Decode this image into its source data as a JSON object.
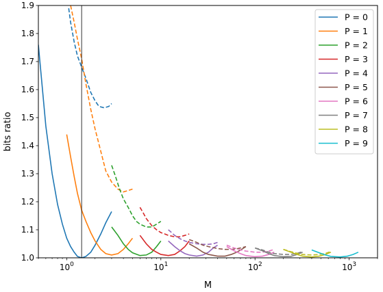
{
  "chart_data": {
    "type": "line",
    "title": "",
    "xlabel": "M",
    "ylabel": "bits ratio",
    "xscale": "log",
    "xlim": [
      0.5,
      2000
    ],
    "ylim": [
      1.0,
      1.9
    ],
    "xticks": [
      {
        "value": 1,
        "base": "10",
        "exp": "0"
      },
      {
        "value": 10,
        "base": "10",
        "exp": "1"
      },
      {
        "value": 100,
        "base": "10",
        "exp": "2"
      },
      {
        "value": 1000,
        "base": "10",
        "exp": "3"
      }
    ],
    "yticks": [
      {
        "value": 1.0,
        "label": "1.0"
      },
      {
        "value": 1.1,
        "label": "1.1"
      },
      {
        "value": 1.2,
        "label": "1.2"
      },
      {
        "value": 1.3,
        "label": "1.3"
      },
      {
        "value": 1.4,
        "label": "1.4"
      },
      {
        "value": 1.5,
        "label": "1.5"
      },
      {
        "value": 1.6,
        "label": "1.6"
      },
      {
        "value": 1.7,
        "label": "1.7"
      },
      {
        "value": 1.8,
        "label": "1.8"
      },
      {
        "value": 1.9,
        "label": "1.9"
      }
    ],
    "vline_x": 1.44,
    "grid": false,
    "legend_position": "top-right",
    "series": [
      {
        "name": "P = 0",
        "color": "#1f77b4",
        "solid": [
          [
            0.5,
            1.76
          ],
          [
            0.6,
            1.47
          ],
          [
            0.7,
            1.3
          ],
          [
            0.8,
            1.19
          ],
          [
            0.9,
            1.12
          ],
          [
            1.0,
            1.07
          ],
          [
            1.1,
            1.04
          ],
          [
            1.2,
            1.02
          ],
          [
            1.3,
            1.005
          ],
          [
            1.44,
            1.0
          ],
          [
            1.6,
            1.005
          ],
          [
            1.8,
            1.02
          ],
          [
            2.0,
            1.045
          ],
          [
            2.3,
            1.085
          ],
          [
            2.6,
            1.125
          ],
          [
            3.0,
            1.165
          ]
        ],
        "dashed": [
          [
            1.05,
            1.89
          ],
          [
            1.1,
            1.84
          ],
          [
            1.2,
            1.77
          ],
          [
            1.3,
            1.72
          ],
          [
            1.44,
            1.68
          ],
          [
            1.6,
            1.64
          ],
          [
            1.8,
            1.59
          ],
          [
            2.0,
            1.56
          ],
          [
            2.2,
            1.54
          ],
          [
            2.5,
            1.535
          ],
          [
            2.8,
            1.54
          ],
          [
            3.0,
            1.55
          ]
        ]
      },
      {
        "name": "P = 1",
        "color": "#ff7f0e",
        "solid": [
          [
            1.0,
            1.44
          ],
          [
            1.1,
            1.36
          ],
          [
            1.2,
            1.29
          ],
          [
            1.3,
            1.23
          ],
          [
            1.44,
            1.17
          ],
          [
            1.6,
            1.13
          ],
          [
            1.8,
            1.09
          ],
          [
            2.0,
            1.06
          ],
          [
            2.3,
            1.03
          ],
          [
            2.6,
            1.015
          ],
          [
            3.0,
            1.01
          ],
          [
            3.5,
            1.015
          ],
          [
            4.0,
            1.03
          ],
          [
            4.5,
            1.05
          ],
          [
            5.0,
            1.07
          ]
        ],
        "dashed": [
          [
            1.1,
            1.9
          ],
          [
            1.2,
            1.84
          ],
          [
            1.3,
            1.78
          ],
          [
            1.44,
            1.71
          ],
          [
            1.6,
            1.62
          ],
          [
            1.8,
            1.53
          ],
          [
            2.0,
            1.46
          ],
          [
            2.3,
            1.38
          ],
          [
            2.6,
            1.31
          ],
          [
            3.0,
            1.27
          ],
          [
            3.5,
            1.245
          ],
          [
            4.0,
            1.235
          ],
          [
            4.5,
            1.24
          ],
          [
            5.0,
            1.245
          ]
        ]
      },
      {
        "name": "P = 2",
        "color": "#2ca02c",
        "solid": [
          [
            3.0,
            1.11
          ],
          [
            3.5,
            1.08
          ],
          [
            4.0,
            1.05
          ],
          [
            4.5,
            1.03
          ],
          [
            5.0,
            1.018
          ],
          [
            6.0,
            1.008
          ],
          [
            7.0,
            1.01
          ],
          [
            8.0,
            1.02
          ],
          [
            9.0,
            1.04
          ],
          [
            10.0,
            1.06
          ]
        ],
        "dashed": [
          [
            3.0,
            1.33
          ],
          [
            3.3,
            1.29
          ],
          [
            3.6,
            1.25
          ],
          [
            4.0,
            1.21
          ],
          [
            4.5,
            1.18
          ],
          [
            5.0,
            1.15
          ],
          [
            5.5,
            1.13
          ],
          [
            6.0,
            1.12
          ],
          [
            7.0,
            1.11
          ],
          [
            8.0,
            1.11
          ],
          [
            9.0,
            1.12
          ],
          [
            10.0,
            1.13
          ]
        ]
      },
      {
        "name": "P = 3",
        "color": "#d62728",
        "solid": [
          [
            6.0,
            1.08
          ],
          [
            7.0,
            1.05
          ],
          [
            8.0,
            1.03
          ],
          [
            9.0,
            1.02
          ],
          [
            10.0,
            1.012
          ],
          [
            12.0,
            1.008
          ],
          [
            14.0,
            1.012
          ],
          [
            16.0,
            1.025
          ],
          [
            18.0,
            1.04
          ],
          [
            20.0,
            1.06
          ]
        ],
        "dashed": [
          [
            6.0,
            1.18
          ],
          [
            6.5,
            1.16
          ],
          [
            7.0,
            1.14
          ],
          [
            8.0,
            1.115
          ],
          [
            9.0,
            1.1
          ],
          [
            10.0,
            1.09
          ],
          [
            11.0,
            1.085
          ],
          [
            12.0,
            1.08
          ],
          [
            14.0,
            1.075
          ],
          [
            16.0,
            1.075
          ],
          [
            18.0,
            1.08
          ],
          [
            20.0,
            1.085
          ]
        ]
      },
      {
        "name": "P = 4",
        "color": "#9467bd",
        "solid": [
          [
            12.0,
            1.06
          ],
          [
            14.0,
            1.04
          ],
          [
            16.0,
            1.025
          ],
          [
            18.0,
            1.015
          ],
          [
            20.0,
            1.01
          ],
          [
            24.0,
            1.006
          ],
          [
            28.0,
            1.01
          ],
          [
            32.0,
            1.02
          ],
          [
            36.0,
            1.035
          ],
          [
            40.0,
            1.045
          ]
        ],
        "dashed": [
          [
            12.0,
            1.1
          ],
          [
            13.0,
            1.09
          ],
          [
            14.0,
            1.08
          ],
          [
            16.0,
            1.068
          ],
          [
            18.0,
            1.06
          ],
          [
            20.0,
            1.055
          ],
          [
            24.0,
            1.05
          ],
          [
            28.0,
            1.048
          ],
          [
            32.0,
            1.048
          ],
          [
            36.0,
            1.05
          ],
          [
            40.0,
            1.055
          ]
        ]
      },
      {
        "name": "P = 5",
        "color": "#8c564b",
        "solid": [
          [
            20.0,
            1.05
          ],
          [
            24.0,
            1.035
          ],
          [
            28.0,
            1.02
          ],
          [
            32.0,
            1.012
          ],
          [
            40.0,
            1.006
          ],
          [
            48.0,
            1.006
          ],
          [
            56.0,
            1.012
          ],
          [
            64.0,
            1.02
          ],
          [
            72.0,
            1.03
          ],
          [
            80.0,
            1.04
          ]
        ],
        "dashed": [
          [
            20.0,
            1.065
          ],
          [
            22.0,
            1.06
          ],
          [
            24.0,
            1.055
          ],
          [
            28.0,
            1.045
          ],
          [
            32.0,
            1.04
          ],
          [
            40.0,
            1.033
          ],
          [
            48.0,
            1.03
          ],
          [
            56.0,
            1.03
          ],
          [
            64.0,
            1.032
          ],
          [
            72.0,
            1.036
          ],
          [
            80.0,
            1.04
          ]
        ]
      },
      {
        "name": "P = 6",
        "color": "#e377c2",
        "solid": [
          [
            50.0,
            1.04
          ],
          [
            60.0,
            1.025
          ],
          [
            70.0,
            1.015
          ],
          [
            80.0,
            1.008
          ],
          [
            100.0,
            1.004
          ],
          [
            120.0,
            1.006
          ],
          [
            140.0,
            1.012
          ],
          [
            160.0,
            1.02
          ]
        ],
        "dashed": [
          [
            50.0,
            1.045
          ],
          [
            60.0,
            1.035
          ],
          [
            70.0,
            1.028
          ],
          [
            80.0,
            1.024
          ],
          [
            100.0,
            1.02
          ],
          [
            120.0,
            1.02
          ],
          [
            140.0,
            1.024
          ],
          [
            160.0,
            1.03
          ]
        ]
      },
      {
        "name": "P = 7",
        "color": "#7f7f7f",
        "solid": [
          [
            100.0,
            1.035
          ],
          [
            120.0,
            1.025
          ],
          [
            140.0,
            1.015
          ],
          [
            160.0,
            1.008
          ],
          [
            200.0,
            1.004
          ],
          [
            240.0,
            1.005
          ],
          [
            280.0,
            1.012
          ],
          [
            320.0,
            1.02
          ]
        ],
        "dashed": [
          [
            100.0,
            1.035
          ],
          [
            120.0,
            1.028
          ],
          [
            140.0,
            1.02
          ],
          [
            160.0,
            1.015
          ],
          [
            200.0,
            1.012
          ],
          [
            240.0,
            1.012
          ],
          [
            280.0,
            1.016
          ],
          [
            320.0,
            1.022
          ]
        ]
      },
      {
        "name": "P = 8",
        "color": "#bcbd22",
        "solid": [
          [
            200.0,
            1.03
          ],
          [
            240.0,
            1.02
          ],
          [
            280.0,
            1.012
          ],
          [
            320.0,
            1.006
          ],
          [
            400.0,
            1.003
          ],
          [
            480.0,
            1.006
          ],
          [
            560.0,
            1.012
          ],
          [
            640.0,
            1.02
          ]
        ],
        "dashed": [
          [
            200.0,
            1.03
          ],
          [
            240.0,
            1.022
          ],
          [
            280.0,
            1.016
          ],
          [
            320.0,
            1.012
          ],
          [
            400.0,
            1.01
          ],
          [
            480.0,
            1.012
          ],
          [
            560.0,
            1.016
          ],
          [
            640.0,
            1.022
          ]
        ]
      },
      {
        "name": "P = 9",
        "color": "#17becf",
        "solid": [
          [
            400.0,
            1.028
          ],
          [
            480.0,
            1.018
          ],
          [
            560.0,
            1.01
          ],
          [
            640.0,
            1.005
          ],
          [
            800.0,
            1.003
          ],
          [
            960.0,
            1.006
          ],
          [
            1100.0,
            1.012
          ],
          [
            1250.0,
            1.02
          ]
        ],
        "dashed": []
      }
    ]
  }
}
